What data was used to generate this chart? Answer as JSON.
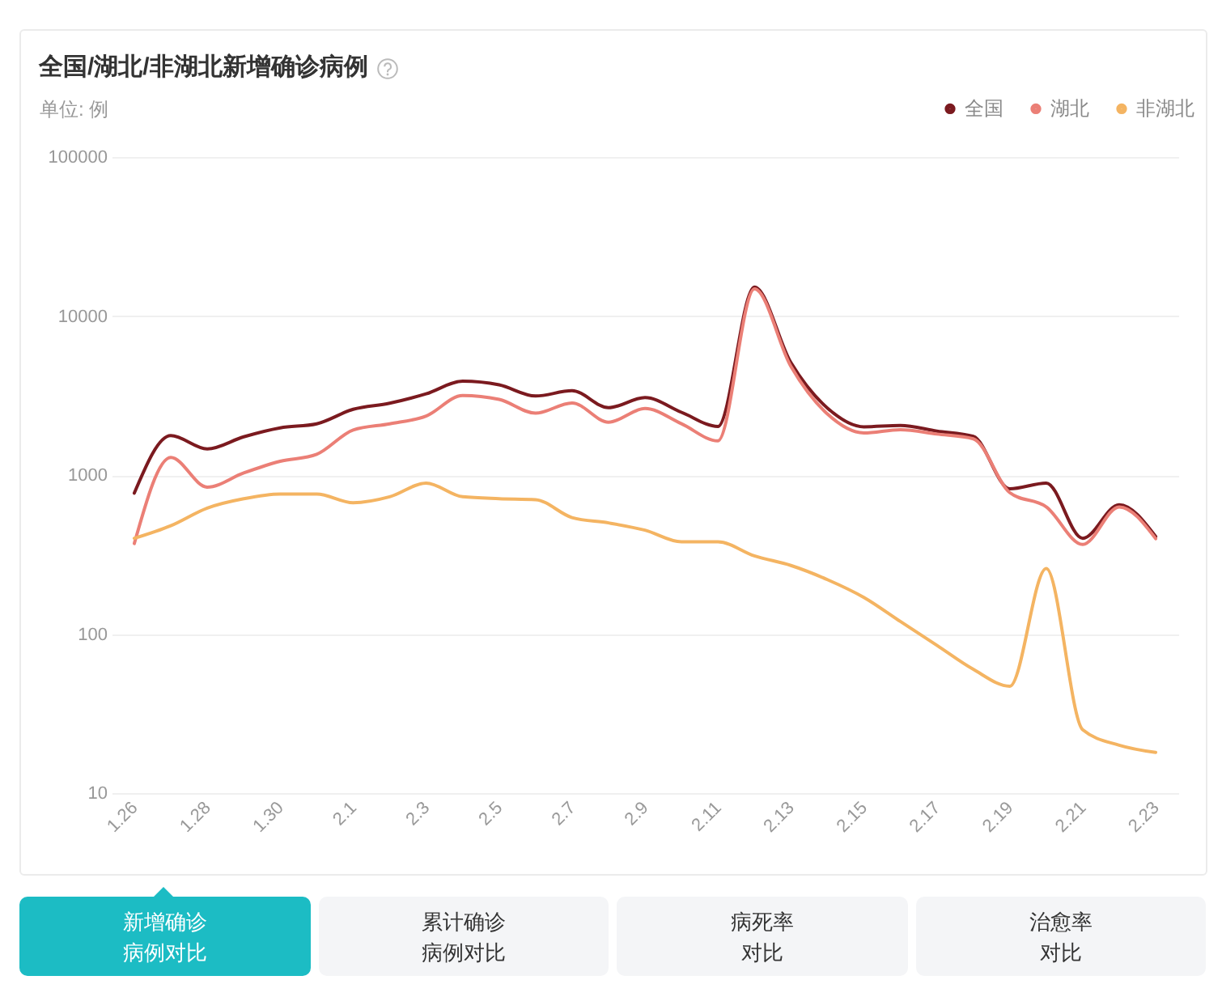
{
  "chart_data": {
    "type": "line",
    "title": "全国/湖北/非湖北新增确诊病例",
    "ylabel": "单位: 例",
    "categories": [
      "1.26",
      null,
      "1.28",
      null,
      "1.30",
      null,
      "2.1",
      null,
      "2.3",
      null,
      "2.5",
      null,
      "2.7",
      null,
      "2.9",
      null,
      "2.11",
      null,
      "2.13",
      null,
      "2.15",
      null,
      "2.17",
      null,
      "2.19",
      null,
      "2.21",
      null,
      "2.23"
    ],
    "series": [
      {
        "name": "全国",
        "color": "#7b1a1f",
        "values": [
          770,
          1770,
          1460,
          1740,
          1980,
          2100,
          2590,
          2830,
          3240,
          3890,
          3690,
          3140,
          3390,
          2650,
          3070,
          2480,
          2020,
          15200,
          5090,
          2640,
          2010,
          2050,
          1890,
          1750,
          820,
          890,
          400,
          650,
          410
        ]
      },
      {
        "name": "湖北",
        "color": "#eb7f76",
        "values": [
          371,
          1290,
          840,
          1030,
          1220,
          1350,
          1920,
          2100,
          2350,
          3160,
          2990,
          2450,
          2840,
          2150,
          2620,
          2100,
          1640,
          14800,
          4820,
          2420,
          1840,
          1930,
          1810,
          1690,
          775,
          631,
          366,
          630,
          398
        ]
      },
      {
        "name": "非湖北",
        "color": "#f4b462",
        "values": [
          400,
          480,
          620,
          710,
          760,
          760,
          670,
          730,
          890,
          730,
          710,
          700,
          540,
          500,
          450,
          380,
          380,
          310,
          270,
          220,
          170,
          120,
          85,
          60,
          47,
          258,
          25,
          20,
          18
        ]
      }
    ],
    "log": "y",
    "ylim": [
      10,
      100000
    ],
    "yticks": [
      10,
      100,
      1000,
      10000,
      100000
    ],
    "grid": "y",
    "legend": "top right",
    "annotations": [
      "新增确诊病例对比",
      "累计确诊病例对比",
      "病死率对比",
      "治愈率对比"
    ]
  }
}
